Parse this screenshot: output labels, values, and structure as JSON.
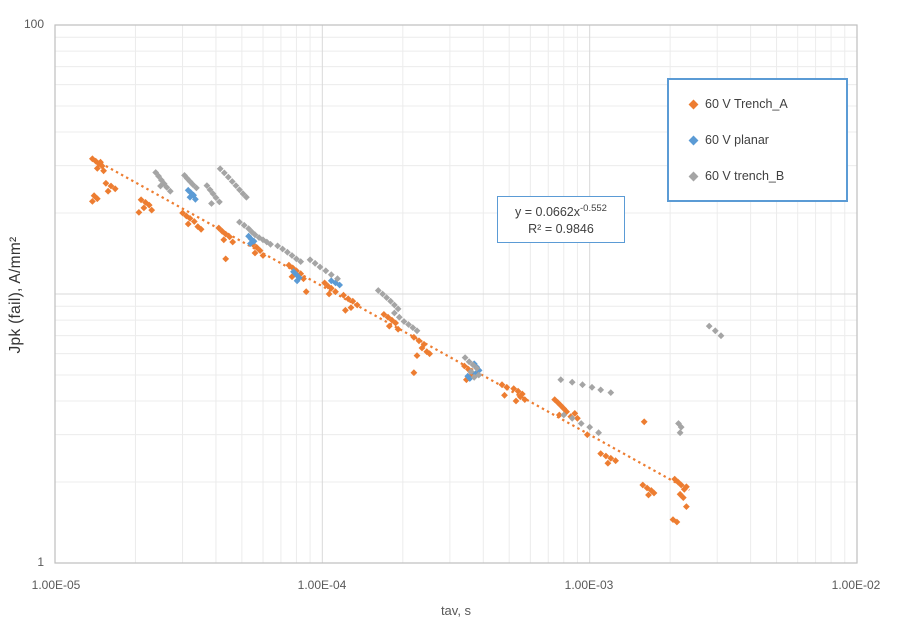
{
  "chart_data": {
    "type": "scatter",
    "title": "",
    "xlabel": "tav, s",
    "ylabel": "Jpk (fail),  A/mm²",
    "x_scale": "log",
    "y_scale": "log",
    "xlim": [
      1e-05,
      0.01
    ],
    "ylim": [
      1,
      100
    ],
    "x_ticks": [
      "1.00E-05",
      "1.00E-04",
      "1.00E-03",
      "1.00E-02"
    ],
    "y_ticks": [
      "100",
      "1"
    ],
    "grid": {
      "major": true,
      "minor": true,
      "major_color": "#D9D9D9",
      "minor_color": "#ECECEC",
      "border_color": "#BFBFBF"
    },
    "legend_position": "inside top-right",
    "legend_border_color": "#5B9BD5",
    "series": [
      {
        "name": "60 V Trench_A",
        "color": "#ED7D31",
        "marker": "diamond",
        "points": [
          [
            1.38e-05,
            31.8
          ],
          [
            1.42e-05,
            31.2
          ],
          [
            1.46e-05,
            30.5
          ],
          [
            1.5e-05,
            29.9
          ],
          [
            1.44e-05,
            29.3
          ],
          [
            1.52e-05,
            28.7
          ],
          [
            1.48e-05,
            30.9
          ],
          [
            1.55e-05,
            25.8
          ],
          [
            1.62e-05,
            25.2
          ],
          [
            1.68e-05,
            24.6
          ],
          [
            1.58e-05,
            24.1
          ],
          [
            1.4e-05,
            23.2
          ],
          [
            1.44e-05,
            22.6
          ],
          [
            1.38e-05,
            22.1
          ],
          [
            2.1e-05,
            22.4
          ],
          [
            2.18e-05,
            21.9
          ],
          [
            2.25e-05,
            21.4
          ],
          [
            2.15e-05,
            20.9
          ],
          [
            2.3e-05,
            20.5
          ],
          [
            2.06e-05,
            20.1
          ],
          [
            3e-05,
            20.0
          ],
          [
            3.1e-05,
            19.5
          ],
          [
            3.2e-05,
            19.1
          ],
          [
            3.32e-05,
            18.6
          ],
          [
            3.15e-05,
            18.2
          ],
          [
            3.42e-05,
            17.8
          ],
          [
            3.52e-05,
            17.4
          ],
          [
            4.1e-05,
            17.6
          ],
          [
            4.22e-05,
            17.1
          ],
          [
            4.35e-05,
            16.7
          ],
          [
            4.5e-05,
            16.3
          ],
          [
            4.28e-05,
            15.9
          ],
          [
            4.62e-05,
            15.6
          ],
          [
            4.35e-05,
            13.5
          ],
          [
            5.5e-05,
            15.3
          ],
          [
            5.68e-05,
            14.9
          ],
          [
            5.85e-05,
            14.5
          ],
          [
            5.6e-05,
            14.2
          ],
          [
            6e-05,
            13.9
          ],
          [
            7.5e-05,
            12.8
          ],
          [
            7.75e-05,
            12.5
          ],
          [
            8e-05,
            12.2
          ],
          [
            8.3e-05,
            11.9
          ],
          [
            7.7e-05,
            11.6
          ],
          [
            8.5e-05,
            11.4
          ],
          [
            8.7e-05,
            10.2
          ],
          [
            0.000102,
            11.0
          ],
          [
            0.000105,
            10.7
          ],
          [
            0.000108,
            10.5
          ],
          [
            0.000112,
            10.2
          ],
          [
            0.000106,
            10.0
          ],
          [
            0.00012,
            9.9
          ],
          [
            0.000125,
            9.6
          ],
          [
            0.00013,
            9.4
          ],
          [
            0.000135,
            9.1
          ],
          [
            0.000128,
            8.9
          ],
          [
            0.000122,
            8.7
          ],
          [
            0.00017,
            8.4
          ],
          [
            0.000176,
            8.2
          ],
          [
            0.000182,
            8.0
          ],
          [
            0.000188,
            7.8
          ],
          [
            0.000178,
            7.6
          ],
          [
            0.000192,
            7.4
          ],
          [
            0.00022,
            6.9
          ],
          [
            0.00023,
            6.7
          ],
          [
            0.00024,
            6.5
          ],
          [
            0.000236,
            6.3
          ],
          [
            0.000246,
            6.1
          ],
          [
            0.000226,
            5.9
          ],
          [
            0.000252,
            6.0
          ],
          [
            0.00022,
            5.1
          ],
          [
            0.00034,
            5.4
          ],
          [
            0.000352,
            5.25
          ],
          [
            0.000362,
            5.1
          ],
          [
            0.000372,
            5.0
          ],
          [
            0.000356,
            4.9
          ],
          [
            0.000346,
            4.8
          ],
          [
            0.00047,
            4.6
          ],
          [
            0.00048,
            4.2
          ],
          [
            0.00049,
            4.5
          ],
          [
            0.00052,
            4.45
          ],
          [
            0.00054,
            4.35
          ],
          [
            0.00056,
            4.25
          ],
          [
            0.00055,
            4.15
          ],
          [
            0.000572,
            4.05
          ],
          [
            0.00053,
            4.0
          ],
          [
            0.00074,
            4.05
          ],
          [
            0.00076,
            3.95
          ],
          [
            0.00078,
            3.85
          ],
          [
            0.0008,
            3.75
          ],
          [
            0.00082,
            3.65
          ],
          [
            0.00077,
            3.55
          ],
          [
            0.00085,
            3.5
          ],
          [
            0.0009,
            3.45
          ],
          [
            0.00088,
            3.6
          ],
          [
            0.00098,
            3.0
          ],
          [
            0.0016,
            3.35
          ],
          [
            0.0011,
            2.55
          ],
          [
            0.00115,
            2.5
          ],
          [
            0.0012,
            2.45
          ],
          [
            0.00125,
            2.4
          ],
          [
            0.00117,
            2.35
          ],
          [
            0.00158,
            1.95
          ],
          [
            0.00164,
            1.9
          ],
          [
            0.0017,
            1.86
          ],
          [
            0.00174,
            1.82
          ],
          [
            0.00166,
            1.79
          ],
          [
            0.00208,
            2.05
          ],
          [
            0.00214,
            2.0
          ],
          [
            0.0022,
            1.95
          ],
          [
            0.00226,
            1.88
          ],
          [
            0.00218,
            1.8
          ],
          [
            0.0023,
            1.92
          ],
          [
            0.00224,
            1.75
          ],
          [
            0.0023,
            1.62
          ],
          [
            0.00205,
            1.45
          ],
          [
            0.00212,
            1.42
          ]
        ]
      },
      {
        "name": "60 V planar",
        "color": "#5B9BD5",
        "marker": "diamond",
        "points": [
          [
            3.15e-05,
            24.3
          ],
          [
            3.22e-05,
            23.8
          ],
          [
            3.3e-05,
            23.3
          ],
          [
            3.2e-05,
            22.9
          ],
          [
            3.35e-05,
            22.5
          ],
          [
            5.3e-05,
            16.4
          ],
          [
            5.42e-05,
            16.0
          ],
          [
            5.55e-05,
            15.7
          ],
          [
            5.38e-05,
            15.4
          ],
          [
            7.8e-05,
            12.1
          ],
          [
            8e-05,
            11.8
          ],
          [
            8.2e-05,
            11.5
          ],
          [
            8.05e-05,
            11.2
          ],
          [
            0.000108,
            11.2
          ],
          [
            0.000112,
            11.0
          ],
          [
            0.000116,
            10.8
          ],
          [
            0.00037,
            5.5
          ],
          [
            0.000378,
            5.35
          ],
          [
            0.000386,
            5.2
          ],
          [
            0.000374,
            5.05
          ],
          [
            0.00035,
            4.95
          ],
          [
            0.000356,
            4.85
          ]
        ]
      },
      {
        "name": "60 V trench_B",
        "color": "#A5A5A5",
        "marker": "diamond",
        "points": [
          [
            2.38e-05,
            28.3
          ],
          [
            2.44e-05,
            27.4
          ],
          [
            2.5e-05,
            26.5
          ],
          [
            2.56e-05,
            25.7
          ],
          [
            2.62e-05,
            24.9
          ],
          [
            2.7e-05,
            24.1
          ],
          [
            2.48e-05,
            25.2
          ],
          [
            3.05e-05,
            27.6
          ],
          [
            3.12e-05,
            26.9
          ],
          [
            3.2e-05,
            26.2
          ],
          [
            3.28e-05,
            25.5
          ],
          [
            3.38e-05,
            24.8
          ],
          [
            3.7e-05,
            25.3
          ],
          [
            3.8e-05,
            24.4
          ],
          [
            3.9e-05,
            23.6
          ],
          [
            4e-05,
            22.8
          ],
          [
            4.12e-05,
            22.0
          ],
          [
            3.85e-05,
            21.7
          ],
          [
            4.15e-05,
            29.2
          ],
          [
            4.3e-05,
            28.2
          ],
          [
            4.45e-05,
            27.2
          ],
          [
            4.6e-05,
            26.2
          ],
          [
            4.75e-05,
            25.3
          ],
          [
            4.9e-05,
            24.4
          ],
          [
            5.05e-05,
            23.6
          ],
          [
            5.2e-05,
            22.9
          ],
          [
            4.9e-05,
            18.5
          ],
          [
            5.1e-05,
            18.0
          ],
          [
            5.3e-05,
            17.5
          ],
          [
            5.45e-05,
            17.0
          ],
          [
            5.6e-05,
            16.6
          ],
          [
            5.8e-05,
            16.2
          ],
          [
            6e-05,
            15.9
          ],
          [
            6.2e-05,
            15.6
          ],
          [
            6.4e-05,
            15.3
          ],
          [
            6.8e-05,
            15.1
          ],
          [
            7.1e-05,
            14.7
          ],
          [
            7.4e-05,
            14.3
          ],
          [
            7.7e-05,
            13.9
          ],
          [
            8e-05,
            13.5
          ],
          [
            8.3e-05,
            13.2
          ],
          [
            9e-05,
            13.4
          ],
          [
            9.4e-05,
            13.0
          ],
          [
            9.8e-05,
            12.6
          ],
          [
            0.000103,
            12.2
          ],
          [
            0.000108,
            11.8
          ],
          [
            0.000114,
            11.4
          ],
          [
            0.000162,
            10.3
          ],
          [
            0.000168,
            10.0
          ],
          [
            0.000174,
            9.7
          ],
          [
            0.00018,
            9.4
          ],
          [
            0.000186,
            9.1
          ],
          [
            0.000192,
            8.8
          ],
          [
            0.000186,
            8.5
          ],
          [
            0.000194,
            8.2
          ],
          [
            0.000202,
            7.9
          ],
          [
            0.00021,
            7.7
          ],
          [
            0.000218,
            7.5
          ],
          [
            0.000226,
            7.3
          ],
          [
            0.000342,
            5.8
          ],
          [
            0.000354,
            5.6
          ],
          [
            0.000366,
            5.45
          ],
          [
            0.000378,
            5.3
          ],
          [
            0.00036,
            5.15
          ],
          [
            0.000385,
            5.0
          ],
          [
            0.00037,
            4.9
          ],
          [
            0.00078,
            4.8
          ],
          [
            0.00086,
            4.7
          ],
          [
            0.00094,
            4.6
          ],
          [
            0.00102,
            4.5
          ],
          [
            0.0011,
            4.4
          ],
          [
            0.0012,
            4.3
          ],
          [
            0.0008,
            3.55
          ],
          [
            0.00086,
            3.45
          ],
          [
            0.00093,
            3.3
          ],
          [
            0.001,
            3.2
          ],
          [
            0.00108,
            3.05
          ],
          [
            0.00215,
            3.3
          ],
          [
            0.0022,
            3.2
          ],
          [
            0.00218,
            3.05
          ],
          [
            0.0028,
            7.6
          ],
          [
            0.00295,
            7.3
          ],
          [
            0.0031,
            7.0
          ]
        ]
      }
    ],
    "trendline": {
      "series": "60 V Trench_A",
      "style": "dotted",
      "color": "#ED7D31",
      "coefficient": 0.0662,
      "exponent": -0.552,
      "x_start": 1.42e-05,
      "x_end": 0.00236,
      "equation_base": "y = 0.0662x",
      "equation_exponent": "-0.552",
      "r2_text": "R² = 0.9846"
    }
  }
}
